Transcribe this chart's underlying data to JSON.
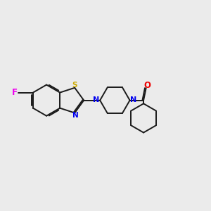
{
  "bg_color": "#ebebeb",
  "bond_color": "#1a1a1a",
  "S_color": "#ccaa00",
  "N_color": "#0000ee",
  "O_color": "#ee0000",
  "F_color": "#ee00ee",
  "lw": 1.4,
  "dbo": 0.055,
  "xlim": [
    0,
    10
  ],
  "ylim": [
    0,
    10
  ]
}
